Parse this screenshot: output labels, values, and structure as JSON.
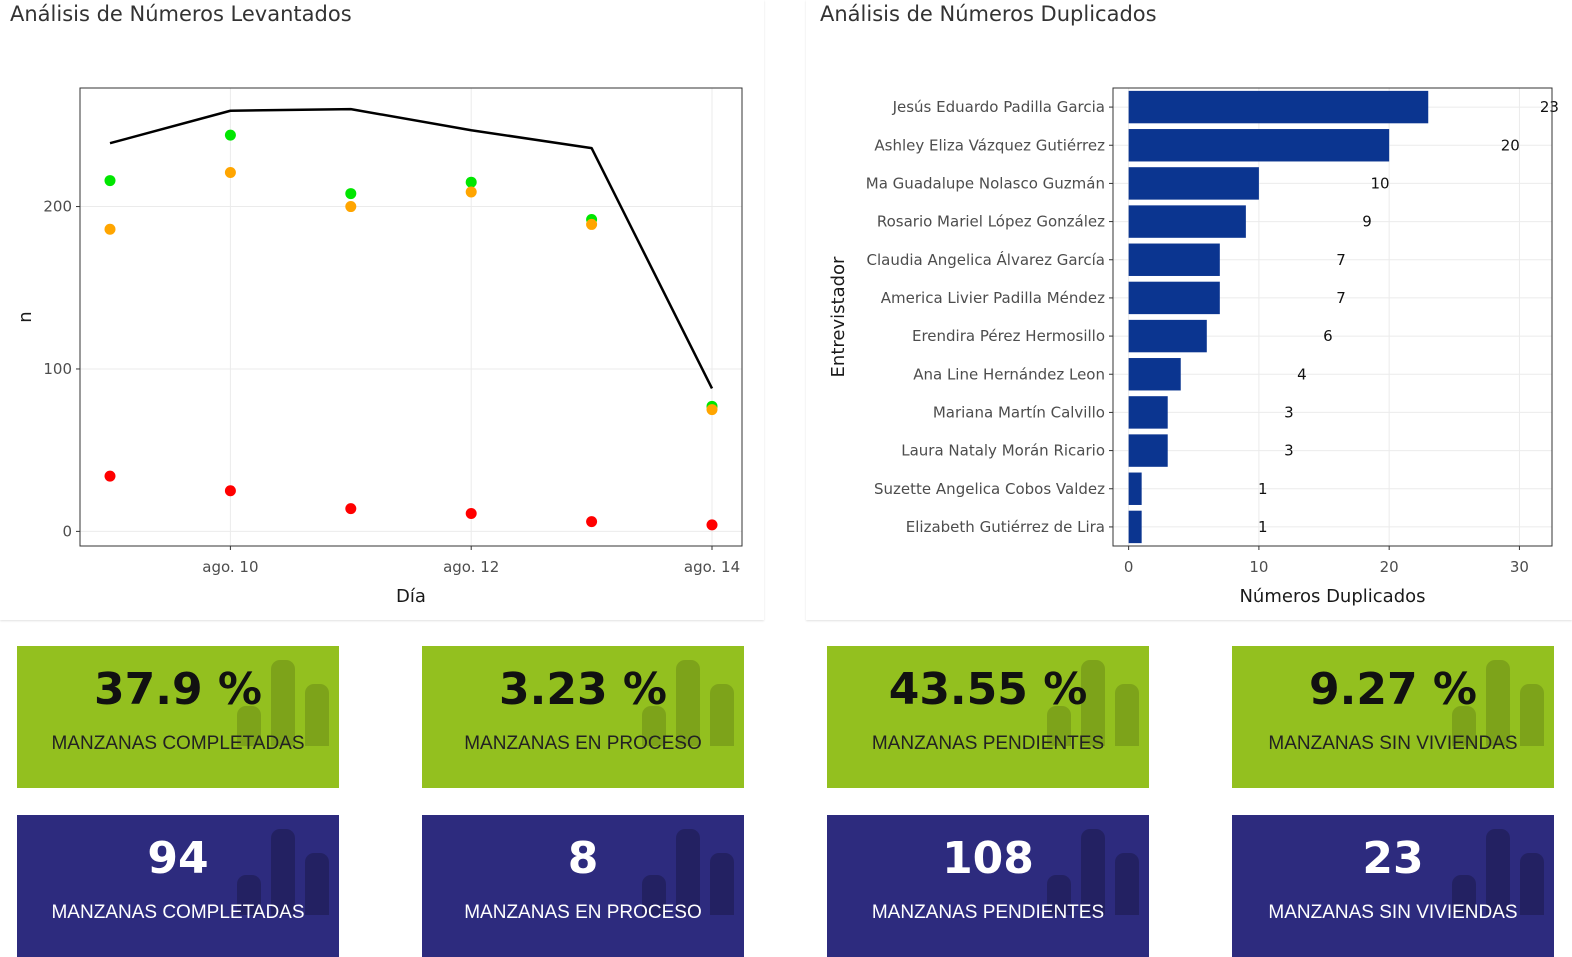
{
  "colors": {
    "green_box": "#93c01f",
    "navy_box": "#2d2b7e",
    "bar": "#0b3590",
    "line": "#000000",
    "dot_green": "#00e600",
    "dot_orange": "#ffa500",
    "dot_red": "#ff0000"
  },
  "left_panel": {
    "title": "Análisis de Números Levantados"
  },
  "right_panel": {
    "title": "Análisis de Números Duplicados"
  },
  "chart_data": [
    {
      "type": "line",
      "xlabel": "Día",
      "ylabel": "n",
      "x": [
        "ago. 9",
        "ago. 10",
        "ago. 11",
        "ago. 12",
        "ago. 13",
        "ago. 14"
      ],
      "xticks": [
        "ago. 10",
        "ago. 12",
        "ago. 14"
      ],
      "yticks": [
        0,
        100,
        200
      ],
      "ylim": [
        -9,
        273
      ],
      "grid": true,
      "series": [
        {
          "values": [
            239,
            259,
            260,
            247,
            236,
            88
          ],
          "color": "#000000",
          "style": "line"
        },
        {
          "values": [
            216,
            244,
            208,
            215,
            192,
            77
          ],
          "color": "#00e600",
          "style": "points"
        },
        {
          "values": [
            186,
            221,
            200,
            209,
            189,
            75
          ],
          "color": "#ffa500",
          "style": "points"
        },
        {
          "values": [
            34,
            25,
            14,
            11,
            6,
            4
          ],
          "color": "#ff0000",
          "style": "points"
        }
      ]
    },
    {
      "type": "bar",
      "orientation": "horizontal",
      "xlabel": "Números Duplicados",
      "ylabel": "Entrevistador",
      "categories": [
        "Jesús Eduardo Padilla Garcia",
        "Ashley Eliza Vázquez Gutiérrez",
        "Ma Guadalupe Nolasco Guzmán",
        "Rosario Mariel López González",
        "Claudia Angelica Álvarez García",
        "America Livier Padilla Méndez",
        "Erendira Pérez Hermosillo",
        "Ana Line Hernández Leon",
        "Mariana Martín Calvillo",
        "Laura Nataly Morán Ricario ",
        "Suzette Angelica Cobos Valdez",
        "Elizabeth Gutiérrez de Lira"
      ],
      "values": [
        23,
        20,
        10,
        9,
        7,
        7,
        6,
        4,
        3,
        3,
        1,
        1
      ],
      "xticks": [
        0,
        10,
        20,
        30
      ],
      "xlim": [
        -1.2,
        32.5
      ],
      "grid": true
    }
  ],
  "value_boxes": [
    {
      "value": "37.9 %",
      "label": "MANZANAS COMPLETADAS",
      "color": "green"
    },
    {
      "value": "3.23 %",
      "label": "MANZANAS EN PROCESO",
      "color": "green"
    },
    {
      "value": "43.55 %",
      "label": "MANZANAS PENDIENTES",
      "color": "green"
    },
    {
      "value": "9.27 %",
      "label": "MANZANAS SIN VIVIENDAS",
      "color": "green"
    },
    {
      "value": "94",
      "label": "MANZANAS COMPLETADAS",
      "color": "navy"
    },
    {
      "value": "8",
      "label": "MANZANAS EN PROCESO",
      "color": "navy"
    },
    {
      "value": "108",
      "label": "MANZANAS PENDIENTES",
      "color": "navy"
    },
    {
      "value": "23",
      "label": "MANZANAS SIN VIVIENDAS",
      "color": "navy"
    }
  ]
}
